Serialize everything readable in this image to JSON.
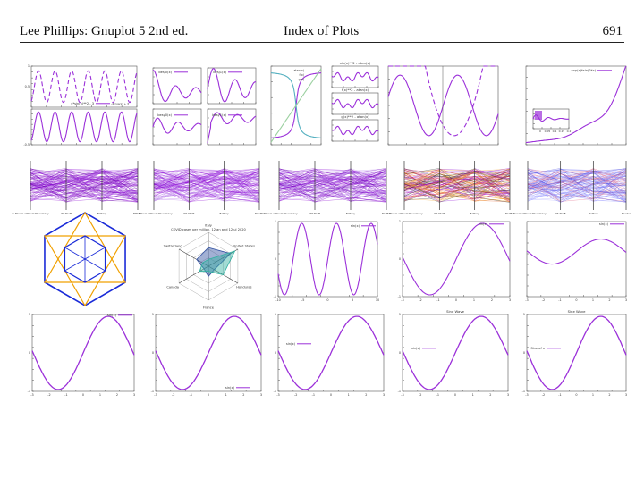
{
  "header": {
    "left": "Lee Phillips: Gnuplot 5 2nd ed.",
    "center": "Index of Plots",
    "right": "691"
  },
  "plots": {
    "row1": {
      "p1_legend_a": "4*sin(x)**2 - 3",
      "p1_legend_b": "-4*cos(x) + 3",
      "bessel_j0": "besj0(x)",
      "bessel_j1": "besj1(x)",
      "bessel_y0": "besy0(x)",
      "bessel_y1": "besy1(x)",
      "p3_legends": [
        "atan(x)",
        "f(x)",
        "g(x)"
      ],
      "p4_titles": [
        "sin(x)**2 - atan(x)",
        "f(x)**2 - atan(x)",
        "g(x)**2 - atan(x)"
      ],
      "p6_legend": "exp(x)*sin(2*x)",
      "p6_inset_ticks": [
        "0",
        "0.05",
        "0.1",
        "0.15",
        "0.2"
      ]
    },
    "parallel_axes": [
      "% Minors without HC Lamacy",
      "Wt Theft",
      "Battery",
      "Murder"
    ],
    "radar": {
      "title": "COVID cases per million, 12Jan and 12Jul 2020",
      "labels": [
        "Italy",
        "United States",
        "Honduras",
        "France",
        "Canada",
        "Switzerland"
      ]
    },
    "row3_legends": [
      "sin(x)",
      "sin(x)",
      "sin(x)"
    ],
    "row4": {
      "legends": [
        "sin(x)",
        "sin(x)",
        "sin(x)",
        "sin(x)",
        "Sine of x"
      ],
      "titles": [
        "",
        "",
        "",
        "Sine Wave",
        "Sine Wave"
      ]
    }
  }
}
